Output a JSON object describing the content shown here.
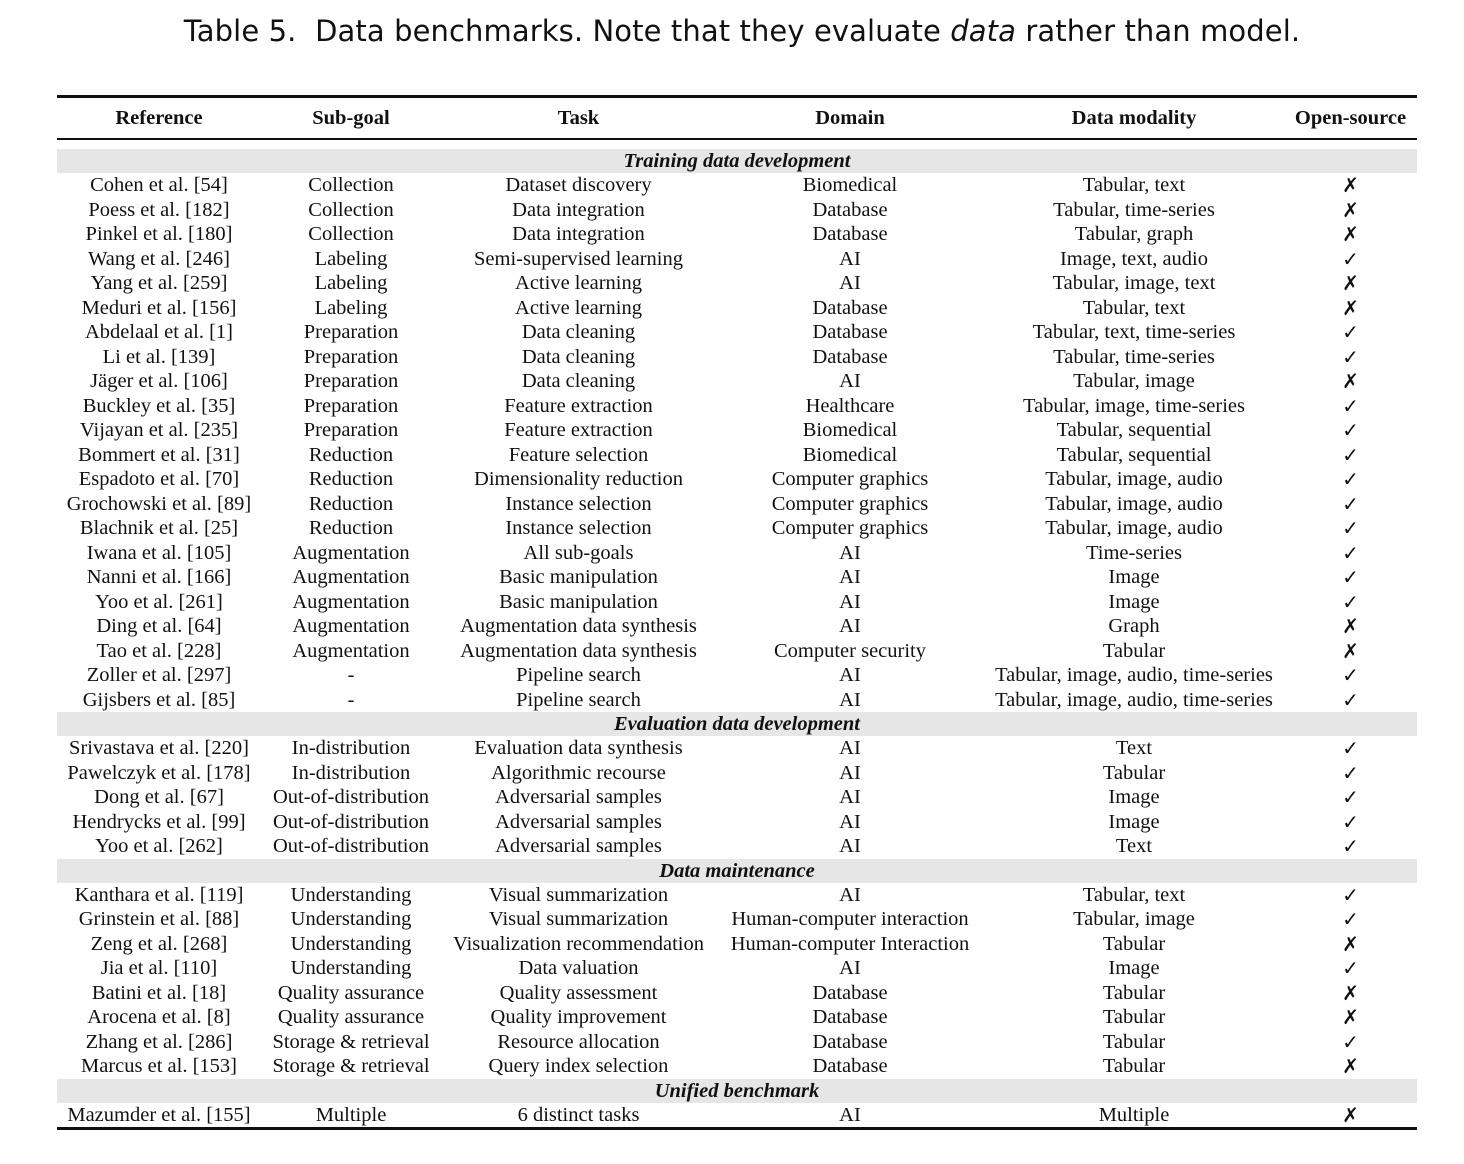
{
  "caption": {
    "label": "Table 5.",
    "text_before": "Data benchmarks. Note that they evaluate ",
    "text_em": "data",
    "text_after": " rather than model."
  },
  "columns": [
    "Reference",
    "Sub-goal",
    "Task",
    "Domain",
    "Data modality",
    "Open-source"
  ],
  "sections": [
    {
      "title": "Training data development",
      "rows": [
        [
          "Cohen et al. [54]",
          "Collection",
          "Dataset discovery",
          "Biomedical",
          "Tabular, text",
          "✗"
        ],
        [
          "Poess et al. [182]",
          "Collection",
          "Data integration",
          "Database",
          "Tabular, time-series",
          "✗"
        ],
        [
          "Pinkel et al. [180]",
          "Collection",
          "Data integration",
          "Database",
          "Tabular, graph",
          "✗"
        ],
        [
          "Wang et al. [246]",
          "Labeling",
          "Semi-supervised learning",
          "AI",
          "Image, text, audio",
          "✓"
        ],
        [
          "Yang et al. [259]",
          "Labeling",
          "Active learning",
          "AI",
          "Tabular, image, text",
          "✗"
        ],
        [
          "Meduri et al. [156]",
          "Labeling",
          "Active learning",
          "Database",
          "Tabular, text",
          "✗"
        ],
        [
          "Abdelaal et al. [1]",
          "Preparation",
          "Data cleaning",
          "Database",
          "Tabular, text, time-series",
          "✓"
        ],
        [
          "Li et al. [139]",
          "Preparation",
          "Data cleaning",
          "Database",
          "Tabular, time-series",
          "✓"
        ],
        [
          "Jäger et al. [106]",
          "Preparation",
          "Data cleaning",
          "AI",
          "Tabular, image",
          "✗"
        ],
        [
          "Buckley et al. [35]",
          "Preparation",
          "Feature extraction",
          "Healthcare",
          "Tabular, image, time-series",
          "✓"
        ],
        [
          "Vijayan et al. [235]",
          "Preparation",
          "Feature extraction",
          "Biomedical",
          "Tabular, sequential",
          "✓"
        ],
        [
          "Bommert et al. [31]",
          "Reduction",
          "Feature selection",
          "Biomedical",
          "Tabular, sequential",
          "✓"
        ],
        [
          "Espadoto et al. [70]",
          "Reduction",
          "Dimensionality reduction",
          "Computer graphics",
          "Tabular, image, audio",
          "✓"
        ],
        [
          "Grochowski et al. [89]",
          "Reduction",
          "Instance selection",
          "Computer graphics",
          "Tabular, image, audio",
          "✓"
        ],
        [
          "Blachnik et al. [25]",
          "Reduction",
          "Instance selection",
          "Computer graphics",
          "Tabular, image, audio",
          "✓"
        ],
        [
          "Iwana et al. [105]",
          "Augmentation",
          "All sub-goals",
          "AI",
          "Time-series",
          "✓"
        ],
        [
          "Nanni et al. [166]",
          "Augmentation",
          "Basic manipulation",
          "AI",
          "Image",
          "✓"
        ],
        [
          "Yoo et al. [261]",
          "Augmentation",
          "Basic manipulation",
          "AI",
          "Image",
          "✓"
        ],
        [
          "Ding et al. [64]",
          "Augmentation",
          "Augmentation data synthesis",
          "AI",
          "Graph",
          "✗"
        ],
        [
          "Tao et al. [228]",
          "Augmentation",
          "Augmentation data synthesis",
          "Computer security",
          "Tabular",
          "✗"
        ],
        [
          "Zoller et al. [297]",
          "-",
          "Pipeline search",
          "AI",
          "Tabular, image, audio, time-series",
          "✓"
        ],
        [
          "Gijsbers et al. [85]",
          "-",
          "Pipeline search",
          "AI",
          "Tabular, image, audio, time-series",
          "✓"
        ]
      ]
    },
    {
      "title": "Evaluation data development",
      "rows": [
        [
          "Srivastava et al. [220]",
          "In-distribution",
          "Evaluation data synthesis",
          "AI",
          "Text",
          "✓"
        ],
        [
          "Pawelczyk et al. [178]",
          "In-distribution",
          "Algorithmic recourse",
          "AI",
          "Tabular",
          "✓"
        ],
        [
          "Dong et al. [67]",
          "Out-of-distribution",
          "Adversarial samples",
          "AI",
          "Image",
          "✓"
        ],
        [
          "Hendrycks et al. [99]",
          "Out-of-distribution",
          "Adversarial samples",
          "AI",
          "Image",
          "✓"
        ],
        [
          "Yoo et al. [262]",
          "Out-of-distribution",
          "Adversarial samples",
          "AI",
          "Text",
          "✓"
        ]
      ]
    },
    {
      "title": "Data maintenance",
      "rows": [
        [
          "Kanthara et al. [119]",
          "Understanding",
          "Visual summarization",
          "AI",
          "Tabular, text",
          "✓"
        ],
        [
          "Grinstein et al. [88]",
          "Understanding",
          "Visual summarization",
          "Human-computer interaction",
          "Tabular, image",
          "✓"
        ],
        [
          "Zeng et al. [268]",
          "Understanding",
          "Visualization recommendation",
          "Human-computer Interaction",
          "Tabular",
          "✗"
        ],
        [
          "Jia et al. [110]",
          "Understanding",
          "Data valuation",
          "AI",
          "Image",
          "✓"
        ],
        [
          "Batini et al. [18]",
          "Quality assurance",
          "Quality assessment",
          "Database",
          "Tabular",
          "✗"
        ],
        [
          "Arocena et al. [8]",
          "Quality assurance",
          "Quality improvement",
          "Database",
          "Tabular",
          "✗"
        ],
        [
          "Zhang et al. [286]",
          "Storage & retrieval",
          "Resource allocation",
          "Database",
          "Tabular",
          "✓"
        ],
        [
          "Marcus et al. [153]",
          "Storage & retrieval",
          "Query index selection",
          "Database",
          "Tabular",
          "✗"
        ]
      ]
    },
    {
      "title": "Unified benchmark",
      "rows": [
        [
          "Mazumder et al. [155]",
          "Multiple",
          "6 distinct tasks",
          "AI",
          "Multiple",
          "✗"
        ]
      ]
    }
  ]
}
